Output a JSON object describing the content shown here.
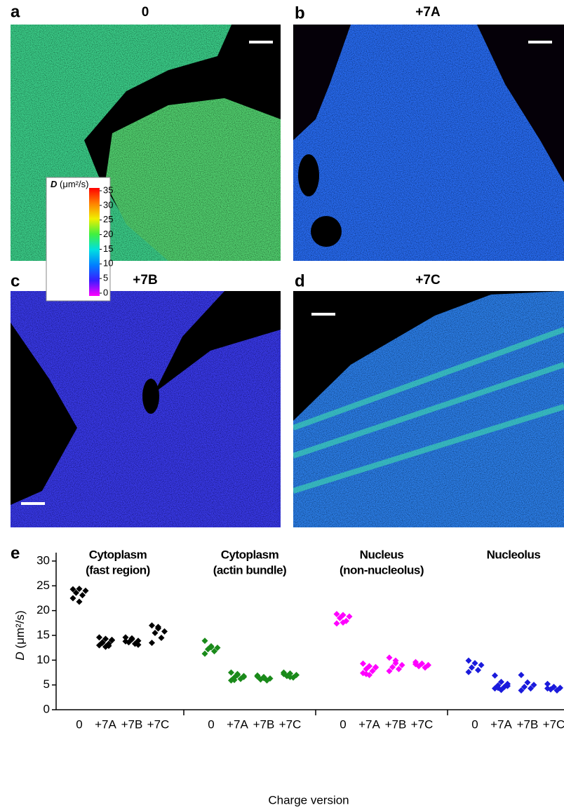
{
  "panels": [
    {
      "label": "a",
      "title": "0"
    },
    {
      "label": "b",
      "title": "+7A"
    },
    {
      "label": "c",
      "title": "+7B"
    },
    {
      "label": "d",
      "title": "+7C"
    }
  ],
  "colorbar": {
    "symbol": "D",
    "unit": "(μm²/s)",
    "lim": [
      0,
      35
    ],
    "ticks": [
      0,
      5,
      10,
      15,
      20,
      25,
      30,
      35
    ],
    "colors": [
      "#ff00ff",
      "#3a1cff",
      "#0080ff",
      "#00e0e0",
      "#40f040",
      "#f0f000",
      "#ff8000",
      "#ff0000"
    ]
  },
  "chart_data": {
    "type": "strip",
    "panel_label": "e",
    "ylabel_symbol": "D",
    "ylabel_unit": "(μm²/s)",
    "xlabel": "Charge version",
    "ylim": [
      0,
      30
    ],
    "yticks": [
      0,
      5,
      10,
      15,
      20,
      25,
      30
    ],
    "categories": [
      "0",
      "+7A",
      "+7B",
      "+7C"
    ],
    "series": [
      {
        "name": [
          "Cytoplasm",
          "(fast region)"
        ],
        "color": "#000000",
        "values": [
          [
            24.3,
            24.4,
            24.0,
            23.6,
            23.1,
            22.5,
            21.8
          ],
          [
            14.6,
            14.3,
            14.0,
            13.6,
            13.3,
            13.0,
            12.7,
            14.1,
            13.5,
            12.9
          ],
          [
            14.6,
            14.2,
            13.9,
            13.6,
            13.3,
            13.8,
            14.4,
            13.1
          ],
          [
            17.0,
            16.4,
            15.8,
            15.5,
            14.5,
            13.5,
            16.7
          ]
        ]
      },
      {
        "name": [
          "Cytoplasm",
          "(actin bundle)"
        ],
        "color": "#1a8a1a",
        "values": [
          [
            13.9,
            12.8,
            12.5,
            12.2,
            11.8,
            11.3,
            12.6
          ],
          [
            7.5,
            7.2,
            6.8,
            6.5,
            6.2,
            5.9,
            7.0,
            6.6,
            6.0
          ],
          [
            6.9,
            6.6,
            6.3,
            6.1,
            5.9,
            6.7,
            6.4
          ],
          [
            7.5,
            7.3,
            7.0,
            6.8,
            6.5,
            7.2,
            6.6
          ]
        ]
      },
      {
        "name": [
          "Nucleus",
          "(non-nucleolus)"
        ],
        "color": "#ff00ff",
        "values": [
          [
            19.3,
            19.1,
            18.8,
            18.5,
            17.9,
            17.4,
            17.6
          ],
          [
            9.3,
            8.8,
            8.5,
            8.2,
            7.8,
            7.4,
            7.0,
            8.6,
            7.2
          ],
          [
            10.5,
            9.9,
            9.0,
            8.6,
            8.2,
            7.8,
            9.4
          ],
          [
            9.6,
            9.3,
            9.0,
            8.8,
            8.5,
            9.2
          ]
        ]
      },
      {
        "name": [
          "Nucleolus"
        ],
        "color": "#1a1adc",
        "values": [
          [
            9.9,
            9.4,
            9.0,
            8.5,
            8.0,
            7.6
          ],
          [
            6.9,
            5.6,
            5.2,
            4.9,
            4.6,
            4.3,
            4.0,
            4.8,
            4.4
          ],
          [
            7.0,
            5.5,
            5.0,
            4.6,
            4.3,
            3.9
          ],
          [
            5.2,
            4.6,
            4.4,
            4.1,
            3.9,
            4.3
          ]
        ]
      }
    ]
  }
}
